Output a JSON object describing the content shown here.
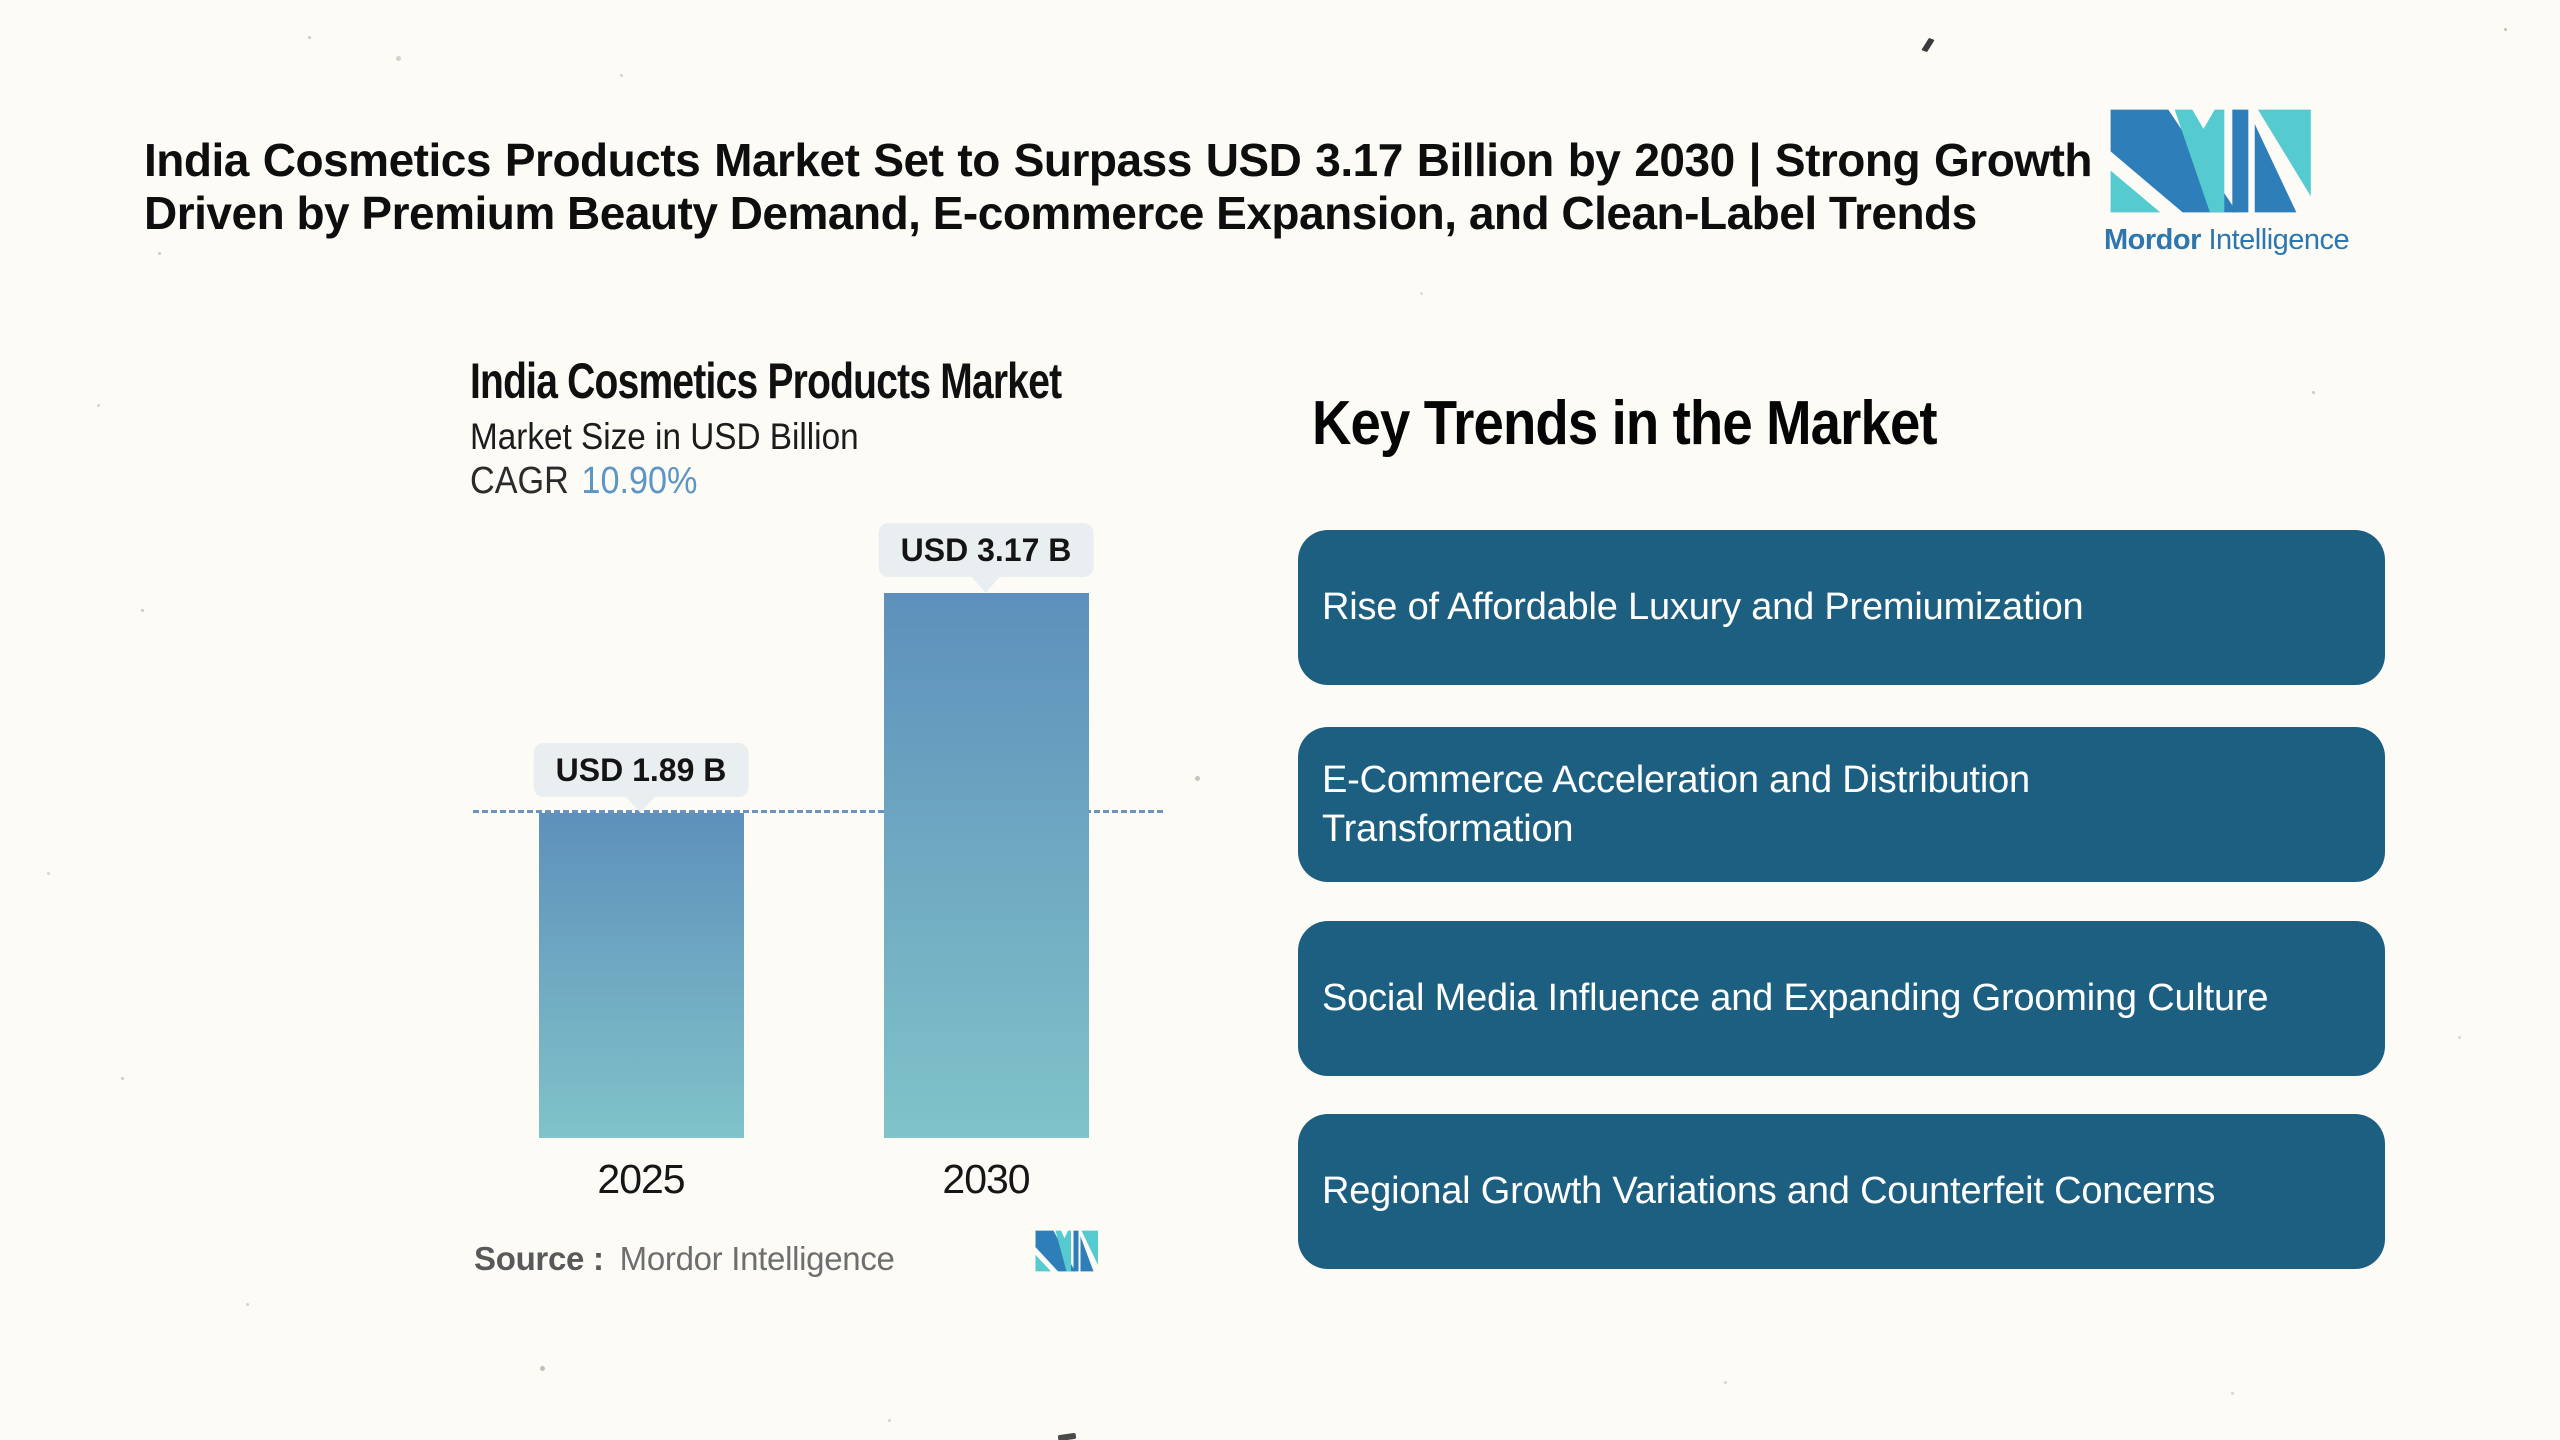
{
  "header": {
    "headline_lines": [
      "India Cosmetics Products Market Set to Surpass USD 3.17 Billion by 2030 | Strong Growth",
      "Driven by Premium Beauty Demand, E-commerce Expansion, and Clean-Label Trends"
    ]
  },
  "brand": {
    "name_bold": "Mordor",
    "name_light": "Intelligence"
  },
  "chart_data": {
    "type": "bar",
    "title": "India Cosmetics Products Market",
    "subtitle": "Market Size in USD Billion",
    "cagr_label": "CAGR",
    "cagr_value": "10.90%",
    "categories": [
      "2025",
      "2030"
    ],
    "values": [
      1.89,
      3.17
    ],
    "value_labels": [
      "USD 1.89 B",
      "USD 3.17 B"
    ],
    "unit": "USD Billion",
    "ylim": [
      0,
      3.4
    ],
    "reference_line": 1.89,
    "grid": false,
    "legend": false,
    "source_label": "Source :",
    "source_value": "Mordor Intelligence"
  },
  "trends": {
    "heading": "Key Trends in the Market",
    "items": [
      "Rise of Affordable Luxury and Premiumization",
      "E-Commerce Acceleration and Distribution Transformation",
      "Social Media Influence and Expanding Grooming Culture",
      "Regional Growth Variations and Counterfeit Concerns"
    ]
  },
  "colors": {
    "page_bg": "#fcfbf6",
    "headline_text": "#0e0e0e",
    "trend_box_bg": "#1d5f80",
    "trend_box_text": "#ffffff",
    "bar_gradient_top": "#5e90bb",
    "bar_gradient_bottom": "#80c3c9",
    "cagr_value_color": "#5d95c4",
    "dashed_line_color": "#6b93bf",
    "value_bubble_bg": "#e9eef1",
    "brand_blue": "#2e7fb9",
    "brand_teal": "#55cbd0",
    "brand_text": "#2d77ae",
    "source_text": "#6e6e6e"
  }
}
